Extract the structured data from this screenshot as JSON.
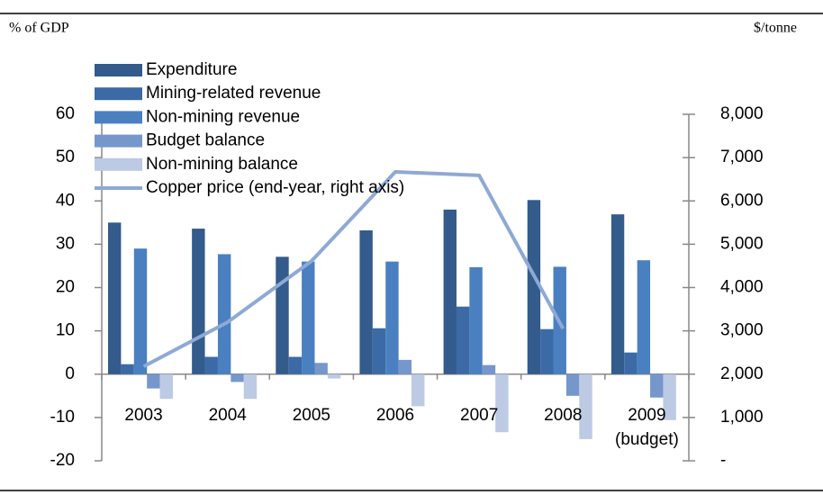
{
  "chart_data": {
    "type": "bar",
    "ylabel": "% of GDP",
    "y2label": "$/tonne",
    "categories": [
      "2003",
      "2004",
      "2005",
      "2006",
      "2007",
      "2008",
      "2009 (budget)"
    ],
    "series": [
      {
        "name": "Expenditure",
        "color": "#335b8c",
        "values": [
          35,
          33.6,
          27.1,
          33.2,
          38,
          40.2,
          36.9
        ]
      },
      {
        "name": "Mining-related revenue",
        "color": "#3b6aa6",
        "values": [
          2.3,
          4,
          4,
          10.6,
          15.6,
          10.4,
          5
        ]
      },
      {
        "name": "Non-mining revenue",
        "color": "#4a80c0",
        "values": [
          29,
          27.7,
          26,
          26,
          24.7,
          24.8,
          26.3
        ]
      },
      {
        "name": "Budget balance",
        "color": "#7697cc",
        "values": [
          -3.3,
          -1.8,
          2.6,
          3.3,
          2.1,
          -5,
          -5.4
        ]
      },
      {
        "name": "Non-mining balance",
        "color": "#bccae3",
        "values": [
          -5.7,
          -5.7,
          -1,
          -7.4,
          -13.4,
          -15,
          -10.6
        ]
      },
      {
        "name": "Copper price (end-year, right axis)",
        "color": "#8ea9d5",
        "type": "line",
        "axis": "y2",
        "values": [
          2180,
          3200,
          4610,
          6670,
          6590,
          3050,
          null
        ]
      }
    ],
    "ylim": [
      -20,
      60
    ],
    "yticks": [
      -20,
      -10,
      0,
      10,
      20,
      30,
      40,
      50,
      60
    ],
    "y2lim": [
      0,
      8000
    ],
    "y2ticks": [
      {
        "value": 0,
        "label": "-"
      },
      {
        "value": 1000,
        "label": "1,000"
      },
      {
        "value": 2000,
        "label": "2,000"
      },
      {
        "value": 3000,
        "label": "3,000"
      },
      {
        "value": 4000,
        "label": "4,000"
      },
      {
        "value": 5000,
        "label": "5,000"
      },
      {
        "value": 6000,
        "label": "6,000"
      },
      {
        "value": 7000,
        "label": "7,000"
      },
      {
        "value": 8000,
        "label": "8,000"
      }
    ],
    "legend": "upper left",
    "grid": false
  }
}
